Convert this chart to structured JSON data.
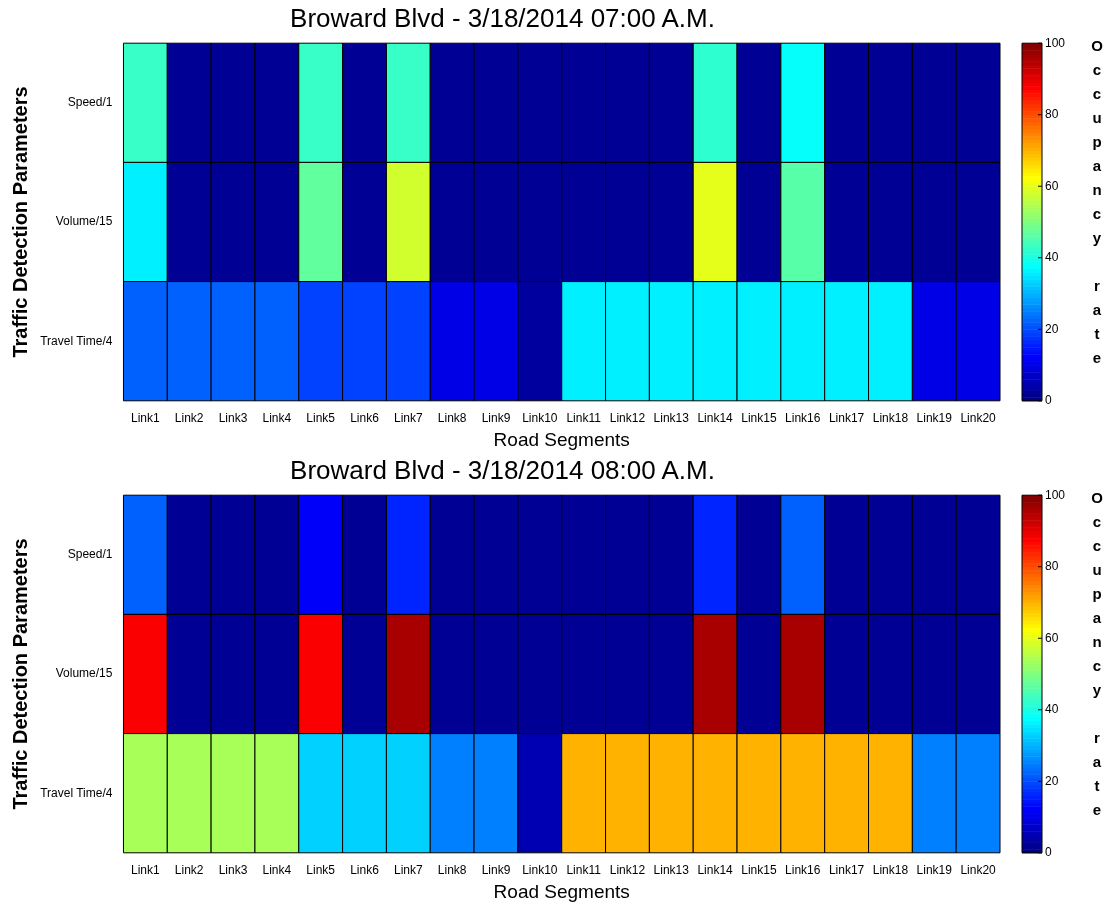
{
  "chart_data": [
    {
      "type": "heatmap",
      "title": "Broward Blvd - 3/18/2014 07:00 A.M.",
      "xlabel": "Road Segments",
      "ylabel": "Traffic Detection Parameters",
      "clabel": "Occupancy rate",
      "categories": [
        "Link1",
        "Link2",
        "Link3",
        "Link4",
        "Link5",
        "Link6",
        "Link7",
        "Link8",
        "Link9",
        "Link10",
        "Link11",
        "Link12",
        "Link13",
        "Link14",
        "Link15",
        "Link16",
        "Link17",
        "Link18",
        "Link19",
        "Link20"
      ],
      "y_categories": [
        "Speed/1",
        "Volume/15",
        "Travel Time/4"
      ],
      "cells": [
        [
          43,
          2,
          2,
          2,
          43,
          2,
          43,
          2,
          2,
          2,
          2,
          2,
          2,
          42,
          2,
          38,
          2,
          2,
          2,
          2
        ],
        [
          36,
          2,
          2,
          2,
          47,
          2,
          58,
          2,
          2,
          2,
          2,
          2,
          2,
          60,
          2,
          46,
          2,
          2,
          2,
          2
        ],
        [
          22,
          22,
          22,
          22,
          19,
          19,
          19,
          10,
          10,
          3,
          36,
          36,
          36,
          36,
          36,
          36,
          36,
          36,
          10,
          10
        ]
      ],
      "clim": [
        0,
        100
      ],
      "cticks": [
        0,
        20,
        40,
        60,
        80,
        100
      ]
    },
    {
      "type": "heatmap",
      "title": "Broward Blvd - 3/18/2014 08:00 A.M.",
      "xlabel": "Road Segments",
      "ylabel": "Traffic Detection Parameters",
      "clabel": "Occupancy rate",
      "categories": [
        "Link1",
        "Link2",
        "Link3",
        "Link4",
        "Link5",
        "Link6",
        "Link7",
        "Link8",
        "Link9",
        "Link10",
        "Link11",
        "Link12",
        "Link13",
        "Link14",
        "Link15",
        "Link16",
        "Link17",
        "Link18",
        "Link19",
        "Link20"
      ],
      "y_categories": [
        "Speed/1",
        "Volume/15",
        "Travel Time/4"
      ],
      "cells": [
        [
          22,
          2,
          2,
          2,
          12,
          2,
          16,
          2,
          2,
          2,
          2,
          2,
          2,
          16,
          2,
          22,
          2,
          2,
          2,
          2
        ],
        [
          88,
          2,
          2,
          2,
          88,
          2,
          96,
          2,
          2,
          2,
          2,
          2,
          2,
          96,
          2,
          96,
          2,
          2,
          2,
          2
        ],
        [
          54,
          54,
          54,
          54,
          33,
          33,
          33,
          25,
          25,
          5,
          70,
          70,
          70,
          70,
          70,
          70,
          70,
          70,
          25,
          25
        ]
      ],
      "clim": [
        0,
        100
      ],
      "cticks": [
        0,
        20,
        40,
        60,
        80,
        100
      ]
    }
  ]
}
